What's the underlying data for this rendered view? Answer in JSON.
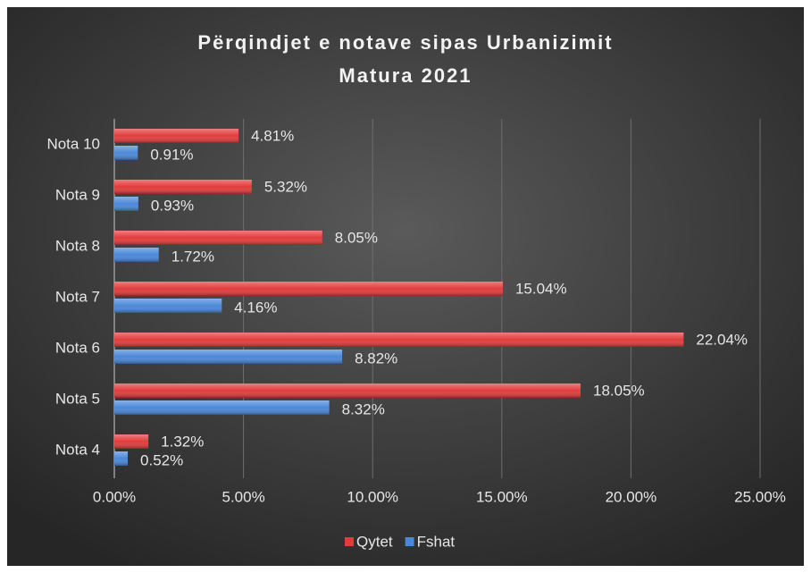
{
  "chart_data": {
    "type": "bar",
    "orientation": "horizontal",
    "title": "Përqindjet e notave sipas Urbanizimit",
    "subtitle": "Matura 2021",
    "categories": [
      "Nota 10",
      "Nota 9",
      "Nota 8",
      "Nota 7",
      "Nota 6",
      "Nota 5",
      "Nota 4"
    ],
    "series": [
      {
        "name": "Qytet",
        "color": "#e23b3b",
        "values": [
          4.81,
          5.32,
          8.05,
          15.04,
          22.04,
          18.05,
          1.32
        ],
        "value_labels": [
          "4.81%",
          "5.32%",
          "8.05%",
          "15.04%",
          "22.04%",
          "18.05%",
          "1.32%"
        ]
      },
      {
        "name": "Fshat",
        "color": "#4a88d8",
        "values": [
          0.91,
          0.93,
          1.72,
          4.16,
          8.82,
          8.32,
          0.52
        ],
        "value_labels": [
          "0.91%",
          "0.93%",
          "1.72%",
          "4.16%",
          "8.82%",
          "8.32%",
          "0.52%"
        ]
      }
    ],
    "xlim": [
      0,
      25
    ],
    "xticks": [
      {
        "value": 0,
        "label": "0.00%"
      },
      {
        "value": 5,
        "label": "5.00%"
      },
      {
        "value": 10,
        "label": "10.00%"
      },
      {
        "value": 15,
        "label": "15.00%"
      },
      {
        "value": 20,
        "label": "20.00%"
      },
      {
        "value": 25,
        "label": "25.00%"
      }
    ],
    "grid": true,
    "legend": "bottom"
  }
}
